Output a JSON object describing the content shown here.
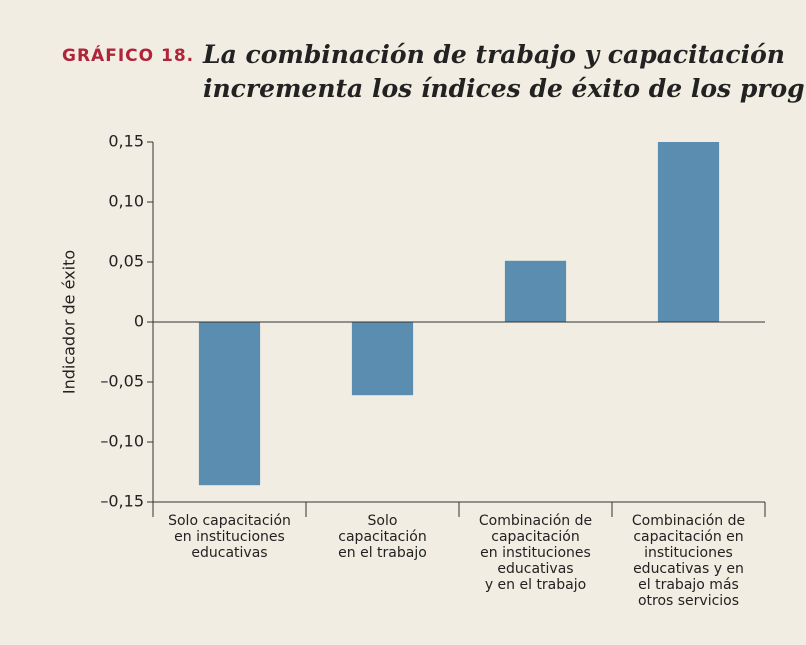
{
  "chart_data": {
    "type": "bar",
    "title_label": "GRÁFICO 18.",
    "title": "La combinación de trabajo y capacitación\nincrementa los índices de éxito de los programas",
    "ylabel": "Indicador de éxito",
    "categories": [
      "Solo capacitación\nen instituciones\neducativas",
      "Solo\ncapacitación\nen el trabajo",
      "Combinación de\ncapacitación\nen instituciones\neducativas\ny en el trabajo",
      "Combinación de\ncapacitación en\ninstituciones\neducativas y en\nel trabajo más\notros servicios"
    ],
    "values": [
      -0.136,
      -0.061,
      0.051,
      0.15
    ],
    "color": "#5b8db0",
    "ylim": [
      -0.15,
      0.15
    ],
    "yticks": [
      {
        "value": 0.15,
        "label": "0,15"
      },
      {
        "value": 0.1,
        "label": "0,10"
      },
      {
        "value": 0.05,
        "label": "0,05"
      },
      0,
      {
        "value": -0.05,
        "label": "–0,05"
      },
      {
        "value": -0.1,
        "label": "–0,10"
      },
      {
        "value": -0.15,
        "label": "–0,15"
      }
    ]
  }
}
